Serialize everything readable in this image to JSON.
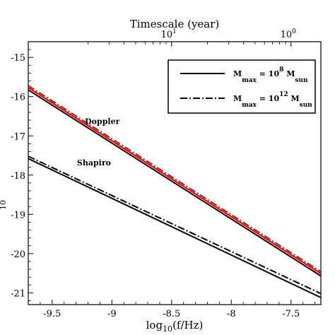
{
  "chart_data": {
    "type": "line",
    "title": "",
    "xlabel_main": "log",
    "xlabel_sub": "10",
    "xlabel_rest": "(f/Hz)",
    "ylabel_sub": "10",
    "top_axis": {
      "title": "Timescale (year)",
      "ticks": [
        {
          "x": -8.5,
          "base": "10",
          "exp": "1"
        },
        {
          "x": -7.5,
          "base": "10",
          "exp": "0"
        }
      ]
    },
    "xlim": [
      -9.7,
      -7.25
    ],
    "ylim": [
      -21.3,
      -14.6
    ],
    "xticks": [
      -9.5,
      -9,
      -8.5,
      -8,
      -7.5
    ],
    "xtick_labels": [
      "-9.5",
      "-9",
      "-8.5",
      "-8",
      "-7.5"
    ],
    "yticks": [
      -15,
      -16,
      -17,
      -18,
      -19,
      -20,
      -21
    ],
    "ytick_labels": [
      "-15",
      "-16",
      "-17",
      "-18",
      "-19",
      "-20",
      "-21"
    ],
    "series": [
      {
        "group": "doppler",
        "style": "solid",
        "color": "#000000",
        "x": [
          -9.7,
          -7.25
        ],
        "y": [
          -15.83,
          -20.57
        ]
      },
      {
        "group": "doppler",
        "style": "solid",
        "color": "#cc0000",
        "x": [
          -9.7,
          -7.25
        ],
        "y": [
          -15.77,
          -20.51
        ]
      },
      {
        "group": "doppler",
        "style": "dashdot",
        "color": "#cc0000",
        "x": [
          -9.7,
          -7.25
        ],
        "y": [
          -15.72,
          -20.46
        ]
      },
      {
        "group": "shapiro",
        "style": "solid",
        "color": "#000000",
        "x": [
          -9.7,
          -7.25
        ],
        "y": [
          -17.58,
          -21.12
        ]
      },
      {
        "group": "shapiro",
        "style": "dashdot",
        "color": "#000000",
        "x": [
          -9.7,
          -7.25
        ],
        "y": [
          -17.52,
          -21.02
        ]
      }
    ],
    "annotations": [
      {
        "text": "Doppler",
        "x": -9.08,
        "y": -16.7
      },
      {
        "text": "Shapiro",
        "x": -9.15,
        "y": -17.75
      }
    ],
    "legend": {
      "placement": "top-right",
      "entries": [
        {
          "style": "solid",
          "color": "#000000",
          "label_main": "M",
          "label_sub": "max",
          "label_eq": " = 10",
          "label_exp": "8",
          "label_unit": " M",
          "label_unit_sub": "sun"
        },
        {
          "style": "dashdot",
          "color": "#000000",
          "label_main": "M",
          "label_sub": "max",
          "label_eq": " = 10",
          "label_exp": "12",
          "label_unit": " M",
          "label_unit_sub": "sun"
        }
      ]
    }
  }
}
